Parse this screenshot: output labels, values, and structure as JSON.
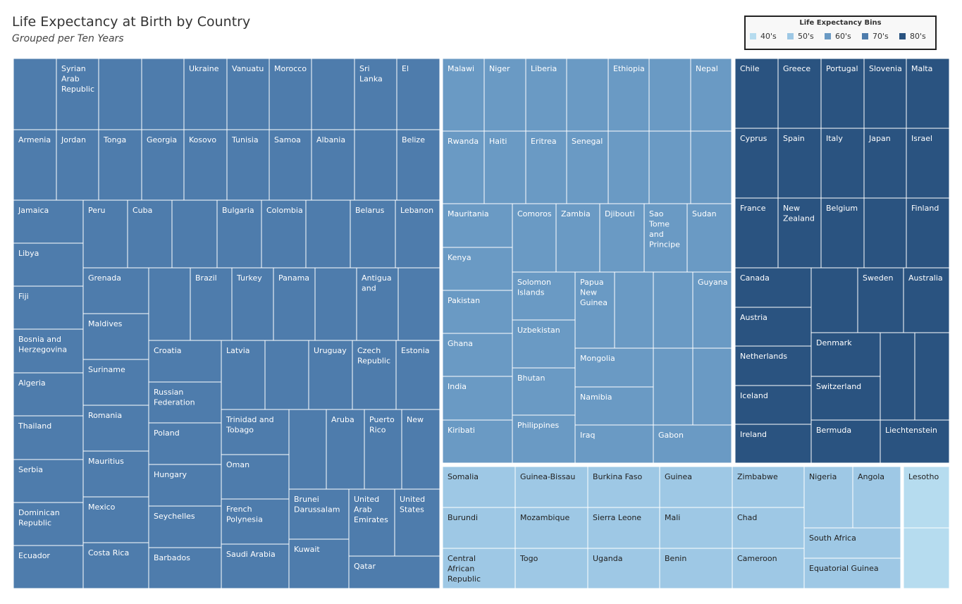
{
  "title": "Life Expectancy at Birth by Country",
  "subtitle": "Grouped per Ten Years",
  "legend": {
    "title": "Life Expectancy Bins",
    "items": [
      {
        "label": "40's",
        "color": "#b6dcef"
      },
      {
        "label": "50's",
        "color": "#9ec8e5"
      },
      {
        "label": "60's",
        "color": "#6a9ac4"
      },
      {
        "label": "70's",
        "color": "#4e7cac"
      },
      {
        "label": "80's",
        "color": "#2a5380"
      }
    ]
  },
  "chart_data": {
    "type": "treemap",
    "groups": [
      {
        "bin": "70's",
        "color": "#4e7cac",
        "label_color": "#ffffff",
        "countries": [
          "Syrian Arab Republic",
          "Ukraine",
          "Vanuatu",
          "Morocco",
          "Sri Lanka",
          "El",
          "Armenia",
          "Jordan",
          "Tonga",
          "Georgia",
          "Kosovo",
          "Tunisia",
          "Samoa",
          "Albania",
          "Belize",
          "Jamaica",
          "Peru",
          "Cuba",
          "Bulgaria",
          "Colombia",
          "Belarus",
          "Lebanon",
          "Libya",
          "Fiji",
          "Bosnia and Herzegovina",
          "Algeria",
          "Thailand",
          "Serbia",
          "Dominican Republic",
          "Ecuador",
          "Grenada",
          "Maldives",
          "Suriname",
          "Romania",
          "Mauritius",
          "Mexico",
          "Costa Rica",
          "Brazil",
          "Turkey",
          "Panama",
          "Antigua and",
          "Croatia",
          "Russian Federation",
          "Poland",
          "Hungary",
          "Seychelles",
          "Barbados",
          "Latvia",
          "Uruguay",
          "Czech Republic",
          "Estonia",
          "Trinidad and Tobago",
          "Oman",
          "French Polynesia",
          "Saudi Arabia",
          "Aruba",
          "Puerto Rico",
          "New",
          "Brunei Darussalam",
          "Kuwait",
          "United Arab Emirates",
          "United States",
          "Qatar"
        ]
      },
      {
        "bin": "60's",
        "color": "#6a9ac4",
        "label_color": "#ffffff",
        "countries": [
          "Malawi",
          "Niger",
          "Liberia",
          "Ethiopia",
          "Nepal",
          "Rwanda",
          "Haiti",
          "Eritrea",
          "Senegal",
          "Mauritania",
          "Kenya",
          "Pakistan",
          "Ghana",
          "India",
          "Kiribati",
          "Comoros",
          "Zambia",
          "Djibouti",
          "Sao Tome and Principe",
          "Sudan",
          "Solomon Islands",
          "Uzbekistan",
          "Bhutan",
          "Philippines",
          "Papua New Guinea",
          "Guyana",
          "Mongolia",
          "Namibia",
          "Iraq",
          "Gabon"
        ]
      },
      {
        "bin": "80's",
        "color": "#2a5380",
        "label_color": "#ffffff",
        "countries": [
          "Chile",
          "Greece",
          "Portugal",
          "Slovenia",
          "Malta",
          "Cyprus",
          "Spain",
          "Italy",
          "Japan",
          "Israel",
          "France",
          "New Zealand",
          "Belgium",
          "Finland",
          "Canada",
          "Sweden",
          "Australia",
          "Austria",
          "Netherlands",
          "Iceland",
          "Ireland",
          "Denmark",
          "Switzerland",
          "Bermuda",
          "Liechtenstein"
        ]
      },
      {
        "bin": "50's",
        "color": "#9ec8e5",
        "label_color": "#222222",
        "countries": [
          "Somalia",
          "Guinea-Bissau",
          "Burkina Faso",
          "Guinea",
          "Zimbabwe",
          "Burundi",
          "Mozambique",
          "Sierra Leone",
          "Mali",
          "Chad",
          "Central African Republic",
          "Togo",
          "Uganda",
          "Benin",
          "Cameroon",
          "Nigeria",
          "Angola",
          "South Africa",
          "Equatorial Guinea"
        ]
      },
      {
        "bin": "40's",
        "color": "#b6dcef",
        "label_color": "#222222",
        "countries": [
          "Lesotho"
        ]
      }
    ]
  }
}
